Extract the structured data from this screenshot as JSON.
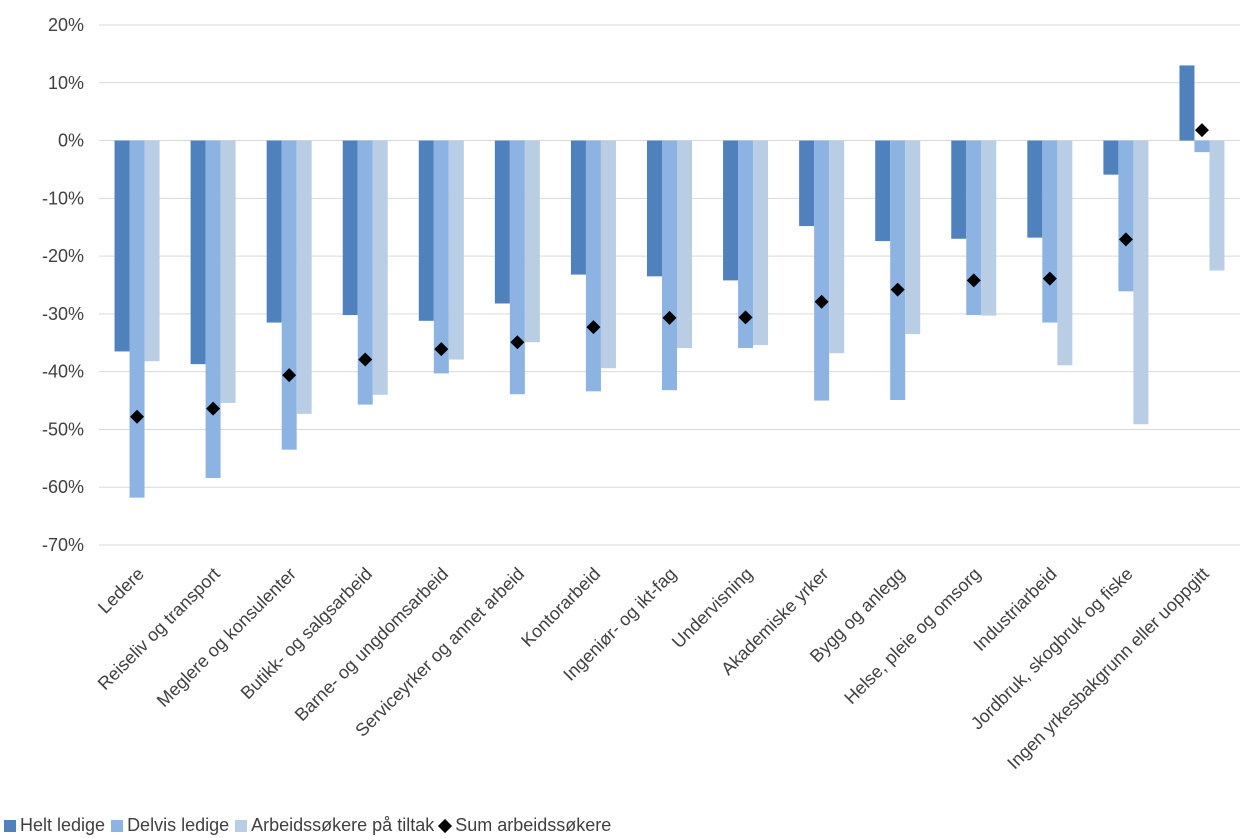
{
  "chart_data": {
    "type": "bar",
    "categories": [
      "Ledere",
      "Reiseliv og transport",
      "Meglere og konsulenter",
      "Butikk- og salgsarbeid",
      "Barne- og ungdomsarbeid",
      "Serviceyrker og annet arbeid",
      "Kontorarbeid",
      "Ingeniør- og ikt-fag",
      "Undervisning",
      "Akademiske yrker",
      "Bygg og anlegg",
      "Helse, pleie og omsorg",
      "Industriarbeid",
      "Jordbruk, skogbruk og fiske",
      "Ingen yrkesbakgrunn eller uoppgitt"
    ],
    "series": [
      {
        "name": "Helt ledige",
        "kind": "bar",
        "color": "#4f81bd",
        "values": [
          -36.5,
          -38.7,
          -31.5,
          -30.2,
          -31.2,
          -28.2,
          -23.2,
          -23.5,
          -24.2,
          -14.8,
          -17.4,
          -17.0,
          -16.8,
          -5.9,
          13.0
        ]
      },
      {
        "name": "Delvis ledige",
        "kind": "bar",
        "color": "#8db3e2",
        "values": [
          -61.8,
          -58.4,
          -53.5,
          -45.7,
          -40.3,
          -43.9,
          -43.4,
          -43.2,
          -35.9,
          -45.0,
          -44.9,
          -30.2,
          -31.5,
          -26.1,
          -2.0
        ]
      },
      {
        "name": "Arbeidssøkere på tiltak",
        "kind": "bar",
        "color": "#b9cde5",
        "values": [
          -38.2,
          -45.4,
          -47.3,
          -44.0,
          -37.9,
          -34.9,
          -39.4,
          -35.9,
          -35.4,
          -36.8,
          -33.5,
          -30.3,
          -38.9,
          -49.1,
          -22.5
        ]
      },
      {
        "name": "Sum arbeidssøkere",
        "kind": "marker",
        "color": "#000000",
        "values": [
          -47.8,
          -46.4,
          -40.6,
          -37.9,
          -36.1,
          -34.9,
          -32.3,
          -30.7,
          -30.6,
          -27.9,
          -25.8,
          -24.2,
          -23.9,
          -17.1,
          1.8
        ]
      }
    ],
    "y_ticks": [
      "20%",
      "10%",
      "0%",
      "-10%",
      "-20%",
      "-30%",
      "-40%",
      "-50%",
      "-60%",
      "-70%"
    ],
    "ylim": [
      -70,
      20
    ],
    "grid": true,
    "legend_position": "bottom-left"
  }
}
